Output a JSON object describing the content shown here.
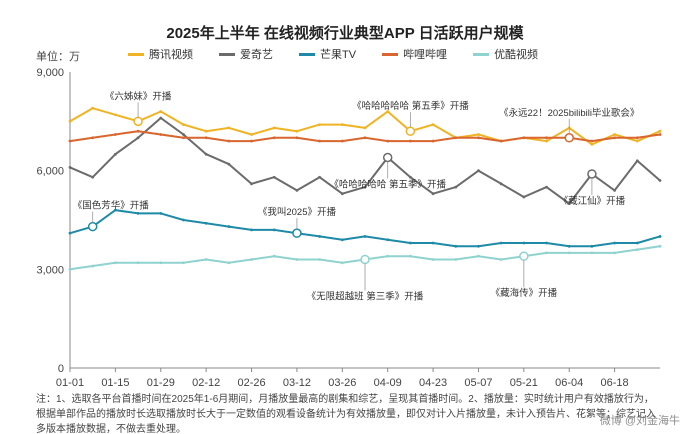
{
  "chart_data": {
    "type": "line",
    "title": "2025年上半年 在线视频行业典型APP 日活跃用户规模",
    "unit_label": "单位：万",
    "ylim": [
      0,
      9000
    ],
    "yticks": [
      0,
      3000,
      6000,
      9000
    ],
    "ytick_labels": [
      "0",
      "3,000",
      "6,000",
      "9,000"
    ],
    "x_dates": [
      "01-01",
      "01-08",
      "01-15",
      "01-22",
      "01-29",
      "02-05",
      "02-12",
      "02-19",
      "02-26",
      "03-05",
      "03-12",
      "03-19",
      "03-26",
      "04-02",
      "04-09",
      "04-16",
      "04-23",
      "04-30",
      "05-07",
      "05-14",
      "05-21",
      "05-28",
      "06-04",
      "06-11",
      "06-18",
      "06-25",
      "06-30"
    ],
    "xtick_labels": [
      "01-01",
      "01-15",
      "01-29",
      "02-12",
      "02-26",
      "03-12",
      "03-26",
      "04-09",
      "04-23",
      "05-07",
      "05-21",
      "06-04",
      "06-18"
    ],
    "grid": false,
    "legend_position": "top",
    "series": [
      {
        "name": "腾讯视频",
        "color": "#f0b323",
        "values": [
          7500,
          7900,
          7700,
          7500,
          7800,
          7400,
          7200,
          7300,
          7100,
          7300,
          7200,
          7400,
          7400,
          7300,
          7800,
          7200,
          7400,
          7000,
          7100,
          6900,
          7000,
          6900,
          7300,
          6800,
          7100,
          6900,
          7200
        ]
      },
      {
        "name": "爱奇艺",
        "color": "#6b6b6b",
        "values": [
          6100,
          5800,
          6500,
          7000,
          7600,
          7100,
          6500,
          6200,
          5600,
          5800,
          5400,
          5800,
          5300,
          5500,
          6400,
          5800,
          5300,
          5500,
          6000,
          5600,
          5200,
          5500,
          5000,
          5900,
          5400,
          6300,
          5700
        ]
      },
      {
        "name": "芒果TV",
        "color": "#1e8aa8",
        "values": [
          4100,
          4300,
          4800,
          4700,
          4700,
          4500,
          4400,
          4300,
          4200,
          4200,
          4100,
          4000,
          3900,
          4000,
          3900,
          3800,
          3800,
          3700,
          3700,
          3800,
          3800,
          3800,
          3700,
          3700,
          3800,
          3800,
          4000
        ]
      },
      {
        "name": "哔哩哔哩",
        "color": "#d8662e",
        "values": [
          6900,
          7000,
          7100,
          7200,
          7100,
          7000,
          7000,
          6900,
          6900,
          7000,
          7000,
          6900,
          6900,
          7000,
          6900,
          6900,
          6900,
          7000,
          7000,
          6900,
          7000,
          7000,
          7000,
          6900,
          7000,
          7000,
          7100
        ]
      },
      {
        "name": "优酷视频",
        "color": "#8fd3cf",
        "values": [
          3000,
          3100,
          3200,
          3200,
          3200,
          3200,
          3300,
          3200,
          3300,
          3400,
          3300,
          3300,
          3200,
          3300,
          3400,
          3400,
          3300,
          3300,
          3400,
          3300,
          3400,
          3500,
          3500,
          3500,
          3500,
          3600,
          3700
        ]
      }
    ],
    "annotations": [
      {
        "text": "《六姊妹》开播",
        "series": 0,
        "x": "01-22"
      },
      {
        "text": "《哈哈哈哈哈 第五季》开播",
        "series": 0,
        "x": "04-16"
      },
      {
        "text": "《永远22！2025bilibili毕业歌会》",
        "series": 3,
        "x": "06-04"
      },
      {
        "text": "《国色芳华》开播",
        "series": 2,
        "x": "01-08"
      },
      {
        "text": "《我叫2025》开播",
        "series": 2,
        "x": "03-12"
      },
      {
        "text": "《哈哈哈哈哈 第五季》开播",
        "series": 1,
        "x": "04-09"
      },
      {
        "text": "《藏江仙》开播",
        "series": 1,
        "x": "06-11"
      },
      {
        "text": "《藏海传》开播",
        "series": 4,
        "x": "05-21"
      },
      {
        "text": "《无限超越班 第三季》开播",
        "series": 4,
        "x": "04-02"
      }
    ]
  },
  "note": "注：1、选取各平台首播时间在2025年1-6月期间，月播放量最高的剧集和综艺，呈现其首播时间。2、播放量：实时统计用户有效播放行为，根据单部作品的播放时长选取播放时长大于一定数值的观看设备统计为有效播放量，即仅对计入片播放量，未计入预告片、花絮等；综艺记入多版本播放数据，不做去重处理。",
  "watermark": "微博 @刘金海牛"
}
